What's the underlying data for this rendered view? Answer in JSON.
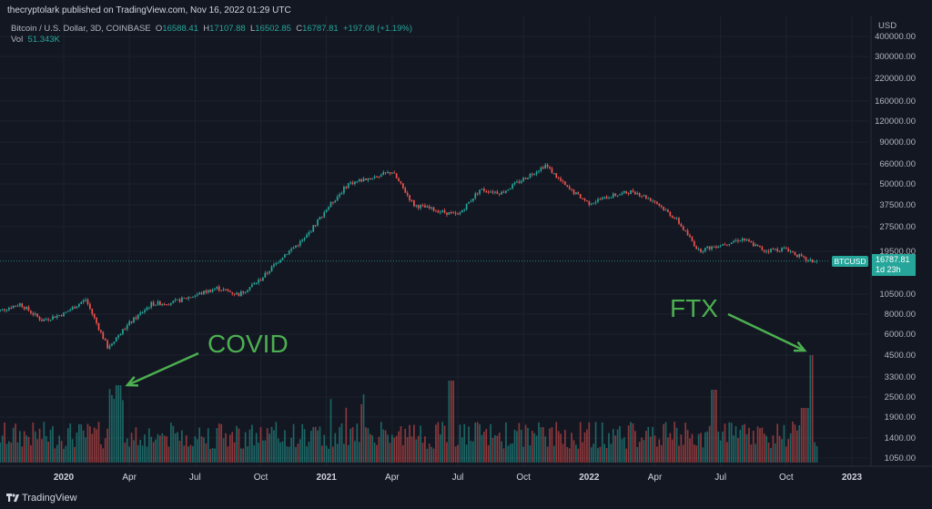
{
  "header": {
    "published": "thecryptolark published on TradingView.com, Nov 16, 2022 01:29 UTC",
    "symbol": "Bitcoin / U.S. Dollar, 3D, COINBASE",
    "o_label": "O",
    "o_value": "16588.41",
    "h_label": "H",
    "h_value": "17107.88",
    "l_label": "L",
    "l_value": "16502.85",
    "c_label": "C",
    "c_value": "16787.81",
    "change": "+197.08 (+1.19%)",
    "vol_label": "Vol",
    "vol_value": "51.343K"
  },
  "price_tag": {
    "symbol": "BTCUSD",
    "price": "16787.81",
    "countdown": "1d 23h"
  },
  "annotations": {
    "covid": "COVID",
    "ftx": "FTX"
  },
  "footer": {
    "brand": "TradingView"
  },
  "colors": {
    "up": "#26a69a",
    "down": "#ef5350",
    "annotation": "#4caf50",
    "bg": "#131722"
  },
  "chart_data": {
    "type": "candlestick",
    "title": "Bitcoin / U.S. Dollar, 3D, COINBASE",
    "y_scale": "log",
    "y_unit": "USD",
    "y_ticks": [
      400000,
      300000,
      220000,
      160000,
      120000,
      90000,
      66000,
      50000,
      37500,
      27500,
      19500,
      10500,
      8000,
      6000,
      4500,
      3300,
      2500,
      1900,
      1400,
      1050
    ],
    "x_ticks": [
      "2020",
      "Apr",
      "Jul",
      "Oct",
      "2021",
      "Apr",
      "Jul",
      "Oct",
      "2022",
      "Apr",
      "Jul",
      "Oct",
      "2023"
    ],
    "last_close": 16787.81,
    "approx_close_path": [
      [
        "2019-10",
        8300
      ],
      [
        "2019-11",
        9200
      ],
      [
        "2019-12",
        7300
      ],
      [
        "2020-01",
        8000
      ],
      [
        "2020-02",
        9800
      ],
      [
        "2020-03",
        5000
      ],
      [
        "2020-04",
        7000
      ],
      [
        "2020-05",
        9200
      ],
      [
        "2020-06",
        9400
      ],
      [
        "2020-08",
        11500
      ],
      [
        "2020-09",
        10500
      ],
      [
        "2020-10",
        13000
      ],
      [
        "2020-11",
        18000
      ],
      [
        "2020-12",
        23000
      ],
      [
        "2021-01",
        35000
      ],
      [
        "2021-02",
        50000
      ],
      [
        "2021-04",
        59000
      ],
      [
        "2021-05",
        37000
      ],
      [
        "2021-07",
        32000
      ],
      [
        "2021-08",
        46000
      ],
      [
        "2021-09",
        44000
      ],
      [
        "2021-11",
        65000
      ],
      [
        "2021-12",
        47000
      ],
      [
        "2022-01",
        38000
      ],
      [
        "2022-02",
        42000
      ],
      [
        "2022-03",
        45000
      ],
      [
        "2022-04",
        39000
      ],
      [
        "2022-05",
        30000
      ],
      [
        "2022-06",
        19500
      ],
      [
        "2022-08",
        23000
      ],
      [
        "2022-09",
        19500
      ],
      [
        "2022-10",
        20000
      ],
      [
        "2022-11",
        16787.81
      ]
    ],
    "volume_spikes": [
      {
        "label": "COVID",
        "date": "2020-03"
      },
      {
        "label": "FTX",
        "date": "2022-11"
      }
    ]
  }
}
